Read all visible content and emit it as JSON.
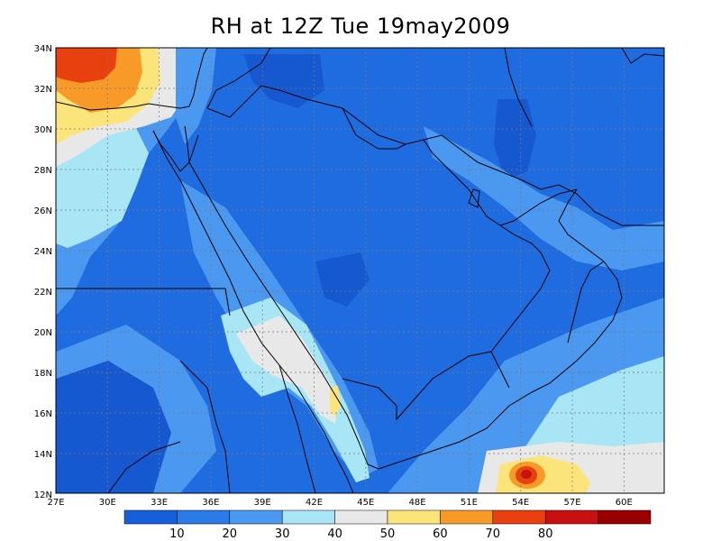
{
  "title": "RH at 12Z Tue 19may2009",
  "lat_labels": [
    "34N",
    "32N",
    "30N",
    "28N",
    "26N",
    "24N",
    "22N",
    "20N",
    "18N",
    "16N",
    "14N",
    "12N"
  ],
  "lon_labels": [
    "27E",
    "30E",
    "33E",
    "36E",
    "39E",
    "42E",
    "45E",
    "48E",
    "51E",
    "54E",
    "57E",
    "60E"
  ],
  "colorbar": {
    "colors": [
      "#1560d8",
      "#2a7ae8",
      "#4a98f0",
      "#a8e6f6",
      "#e8e8e8",
      "#fbe47a",
      "#f79a28",
      "#e8400e",
      "#c81010",
      "#9a0000"
    ],
    "labels": [
      "10",
      "20",
      "30",
      "40",
      "50",
      "60",
      "70",
      "80"
    ]
  },
  "map_colors": {
    "land": "#1f6ce0",
    "mid": "#2b78e6",
    "light": "#4a98f0",
    "cyan": "#a8e6f6",
    "white": "#e8e8e8",
    "yellow": "#fbe47a",
    "orange": "#f79a28",
    "red": "#e8400e",
    "darkred": "#c81010",
    "dark": "#1558cf",
    "coast": "#000000"
  }
}
